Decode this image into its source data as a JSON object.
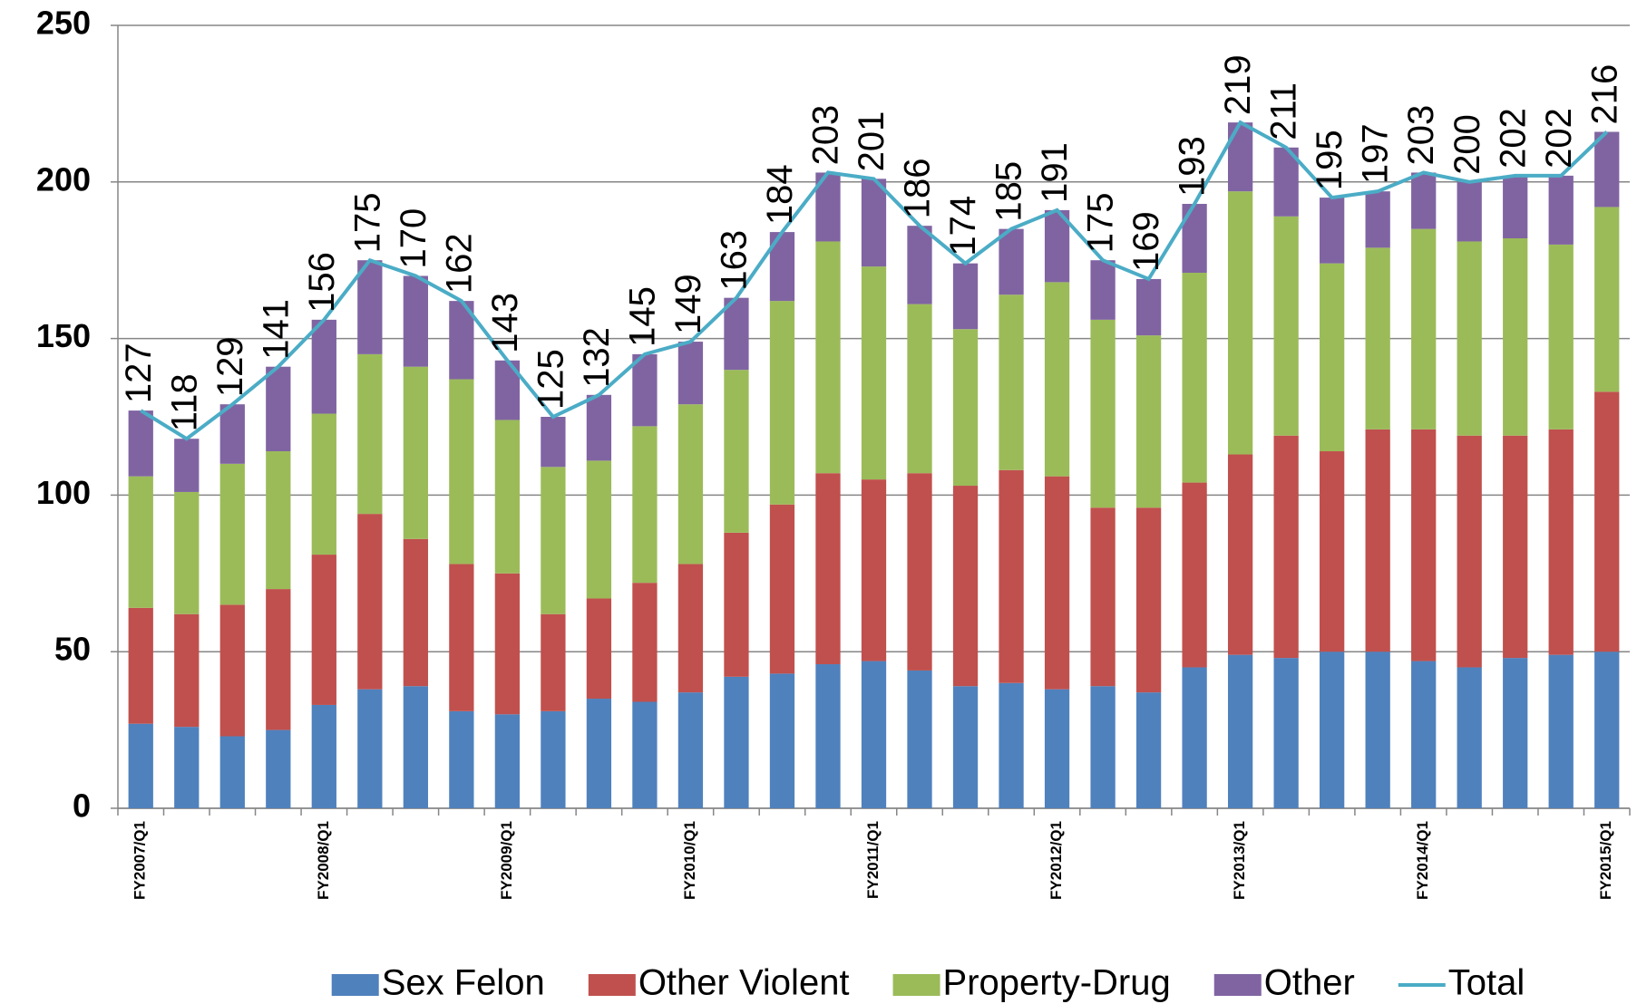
{
  "chart_data": {
    "type": "stacked-bar-line",
    "categories": [
      "FY2007/Q1",
      null,
      null,
      null,
      "FY2008/Q1",
      null,
      null,
      null,
      "FY2009/Q1",
      null,
      null,
      null,
      "FY2010/Q1",
      null,
      null,
      null,
      "FY2011/Q1",
      null,
      null,
      null,
      "FY2012/Q1",
      null,
      null,
      null,
      "FY2013/Q1",
      null,
      null,
      null,
      "FY2014/Q1",
      null,
      null,
      null,
      "FY2015/Q1"
    ],
    "series": [
      {
        "name": "Sex Felon",
        "type": "bar",
        "color": "#4f81bd",
        "values": [
          27,
          26,
          23,
          25,
          33,
          38,
          39,
          31,
          30,
          31,
          35,
          34,
          37,
          42,
          43,
          46,
          47,
          44,
          39,
          40,
          38,
          39,
          37,
          45,
          49,
          48,
          50,
          50,
          47,
          45,
          48,
          49,
          50
        ]
      },
      {
        "name": "Other Violent",
        "type": "bar",
        "color": "#c0504d",
        "values": [
          37,
          36,
          42,
          45,
          48,
          56,
          47,
          47,
          45,
          31,
          32,
          38,
          41,
          46,
          54,
          61,
          58,
          63,
          64,
          68,
          68,
          57,
          59,
          59,
          64,
          71,
          64,
          71,
          74,
          74,
          71,
          72,
          83
        ]
      },
      {
        "name": "Property-Drug",
        "type": "bar",
        "color": "#9bbb59",
        "values": [
          42,
          39,
          45,
          44,
          45,
          51,
          55,
          59,
          49,
          47,
          44,
          50,
          51,
          52,
          65,
          74,
          68,
          54,
          50,
          56,
          62,
          60,
          55,
          67,
          84,
          70,
          60,
          58,
          64,
          62,
          63,
          59,
          59
        ]
      },
      {
        "name": "Other",
        "type": "bar",
        "color": "#8064a2",
        "values": [
          21,
          17,
          19,
          27,
          30,
          30,
          29,
          25,
          19,
          16,
          21,
          23,
          20,
          23,
          22,
          22,
          28,
          25,
          21,
          21,
          23,
          19,
          18,
          22,
          22,
          22,
          21,
          18,
          18,
          19,
          20,
          22,
          24
        ]
      },
      {
        "name": "Total",
        "type": "line",
        "color": "#4bacc6",
        "values": [
          127,
          118,
          129,
          141,
          156,
          175,
          170,
          162,
          143,
          125,
          132,
          145,
          149,
          163,
          184,
          203,
          201,
          186,
          174,
          185,
          191,
          175,
          169,
          193,
          219,
          211,
          195,
          197,
          203,
          200,
          202,
          202,
          216
        ]
      }
    ],
    "ylim": [
      0,
      250
    ],
    "yticks": [
      0,
      50,
      100,
      150,
      200,
      250
    ],
    "grid": true,
    "legend": "bottom"
  }
}
